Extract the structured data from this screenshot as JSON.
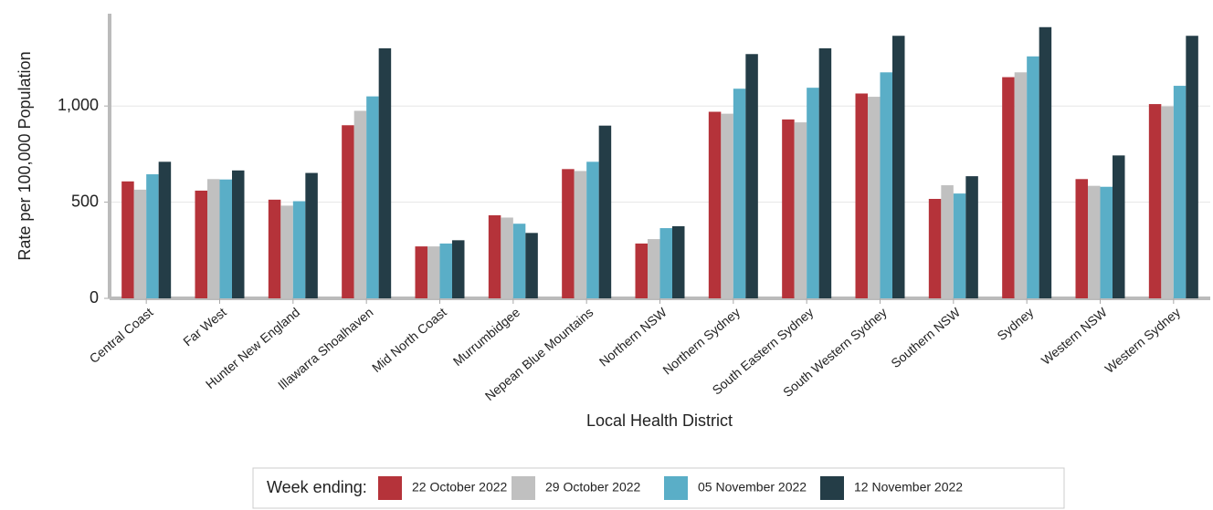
{
  "chart_data": {
    "type": "bar",
    "x_label": "Local Health District",
    "y_label": "Rate per 100,000 Population",
    "legend_title": "Week ending:",
    "legend_position": "bottom",
    "grid": true,
    "ylim": [
      0,
      1480
    ],
    "yticks": [
      0,
      500,
      {
        "value": 1000,
        "label": "1,000"
      }
    ],
    "categories": [
      "Central Coast",
      "Far West",
      "Hunter New England",
      "Illawarra Shoalhaven",
      "Mid North Coast",
      "Murrumbidgee",
      "Nepean Blue Mountains",
      "Northern NSW",
      "Northern Sydney",
      "South Eastern Sydney",
      "South Western Sydney",
      "Southern NSW",
      "Sydney",
      "Western NSW",
      "Western Sydney"
    ],
    "series": [
      {
        "name": "22 October 2022",
        "color": "#b5333a",
        "values": [
          608,
          560,
          513,
          900,
          270,
          432,
          672,
          285,
          970,
          930,
          1065,
          517,
          1150,
          620,
          1010
        ]
      },
      {
        "name": "29 October 2022",
        "color": "#c0c0c0",
        "values": [
          565,
          620,
          482,
          975,
          270,
          420,
          662,
          308,
          960,
          915,
          1048,
          588,
          1175,
          585,
          998
        ]
      },
      {
        "name": "05 November 2022",
        "color": "#5aaec7",
        "values": [
          645,
          618,
          505,
          1050,
          285,
          388,
          710,
          365,
          1090,
          1095,
          1175,
          545,
          1258,
          580,
          1105
        ]
      },
      {
        "name": "12 November 2022",
        "color": "#243d47",
        "values": [
          710,
          665,
          652,
          1300,
          302,
          340,
          898,
          375,
          1270,
          1300,
          1365,
          635,
          1410,
          743,
          1365
        ]
      }
    ]
  }
}
